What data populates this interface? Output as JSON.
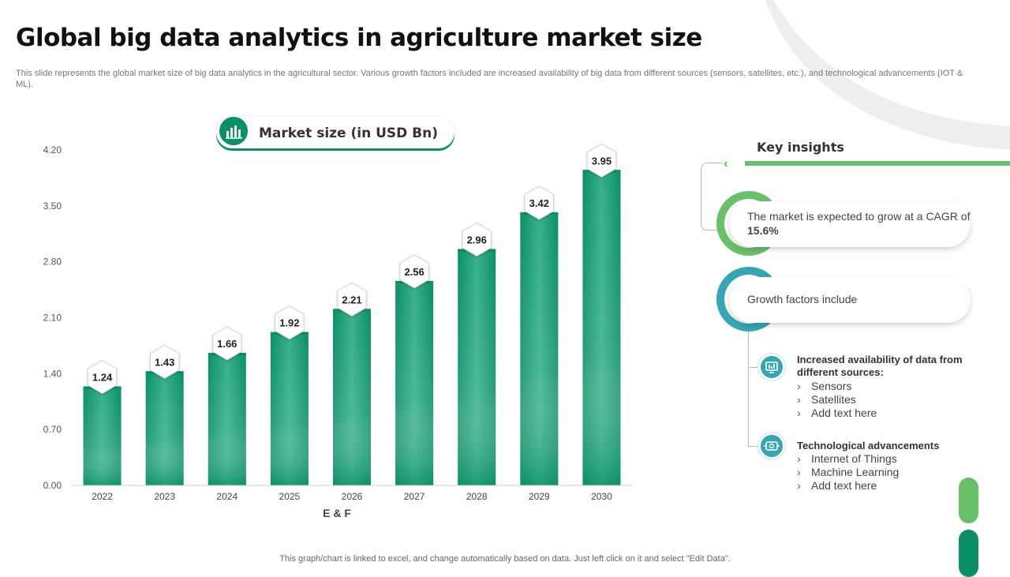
{
  "page": {
    "title": "Global big data analytics in agriculture market size",
    "subtitle": "This slide represents the global market size of big data analytics in the agricultural sector. Various growth factors included are increased availability of big data from different sources (sensors, satellites, etc.), and technological advancements (IOT & ML).",
    "legend_label": "Market size (in USD Bn)",
    "footer": "This graph/chart is linked to excel,  and change automatically based on data. Just left click on it and select \"Edit Data\"."
  },
  "colors": {
    "bar": "#0a8f66",
    "accent_green": "#6abf69",
    "accent_teal": "#34a6b4"
  },
  "chart_data": {
    "type": "bar",
    "categories": [
      "2022",
      "2023",
      "2024",
      "2025",
      "2026",
      "2027",
      "2028",
      "2029",
      "2030"
    ],
    "values": [
      1.24,
      1.43,
      1.66,
      1.92,
      2.21,
      2.56,
      2.96,
      3.42,
      3.95
    ],
    "data_labels": [
      "1.24",
      "1.43",
      "1.66",
      "1.92",
      "2.21",
      "2.56",
      "2.96",
      "3.42",
      "3.95"
    ],
    "yticks": [
      "0.00",
      "0.70",
      "1.40",
      "2.10",
      "2.80",
      "3.50",
      "4.20"
    ],
    "ylim": [
      0,
      4.2
    ],
    "xlabel": "E & F",
    "grid": false,
    "legend": "Market size (in USD Bn)"
  },
  "insights": {
    "title": "Key insights",
    "cagr_prefix": "The market is expected to grow at a CAGR of ",
    "cagr_value": "15.6%",
    "growth_label": "Growth factors include",
    "factors": [
      {
        "heading": "Increased availability of data from different sources:",
        "icon": "data-sources-icon",
        "bullet": "›",
        "items": [
          "Sensors",
          "Satellites",
          "Add text here"
        ]
      },
      {
        "heading": "Technological advancements",
        "icon": "technology-icon",
        "bullet": "›",
        "items": [
          "Internet of Things",
          "Machine Learning",
          "Add text here"
        ]
      }
    ]
  }
}
